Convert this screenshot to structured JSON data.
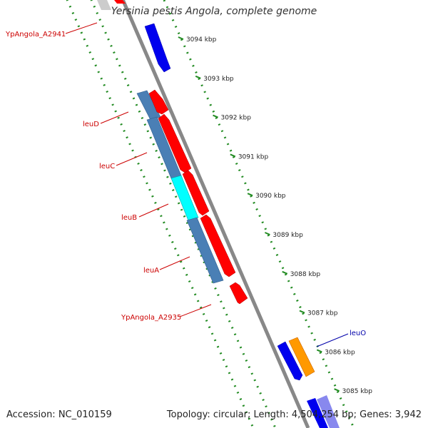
{
  "title": "Yersinia pestis Angola, complete genome",
  "footer": {
    "accession": "Accession: NC_010159",
    "summary": "Topology: circular; Length: 4,504,254 bp; Genes: 3,942"
  },
  "ticks": [
    {
      "label": "3094 kbp",
      "pos": 3094
    },
    {
      "label": "3093 kbp",
      "pos": 3093
    },
    {
      "label": "3092 kbp",
      "pos": 3092
    },
    {
      "label": "3091 kbp",
      "pos": 3091
    },
    {
      "label": "3090 kbp",
      "pos": 3090
    },
    {
      "label": "3089 kbp",
      "pos": 3089
    },
    {
      "label": "3088 kbp",
      "pos": 3088
    },
    {
      "label": "3087 kbp",
      "pos": 3087
    },
    {
      "label": "3086 kbp",
      "pos": 3086
    },
    {
      "label": "3085 kbp",
      "pos": 3085
    }
  ],
  "gene_labels": [
    {
      "text": "YpAngola_A2941",
      "color": "#cc0000"
    },
    {
      "text": "leuD",
      "color": "#cc0000"
    },
    {
      "text": "leuC",
      "color": "#cc0000"
    },
    {
      "text": "leuB",
      "color": "#cc0000"
    },
    {
      "text": "leuA",
      "color": "#cc0000"
    },
    {
      "text": "YpAngola_A2935",
      "color": "#cc0000"
    },
    {
      "text": "leuO",
      "color": "#0000aa"
    }
  ],
  "colors": {
    "backbone": "#808080",
    "forward_gene": "#ff0000",
    "reverse_gene": "#0000ee",
    "orange_gene": "#ff9900",
    "steelblue_feature": "#4a7fb5",
    "cyan_feature": "#00ffff",
    "dotted_ring": "#228b22"
  }
}
